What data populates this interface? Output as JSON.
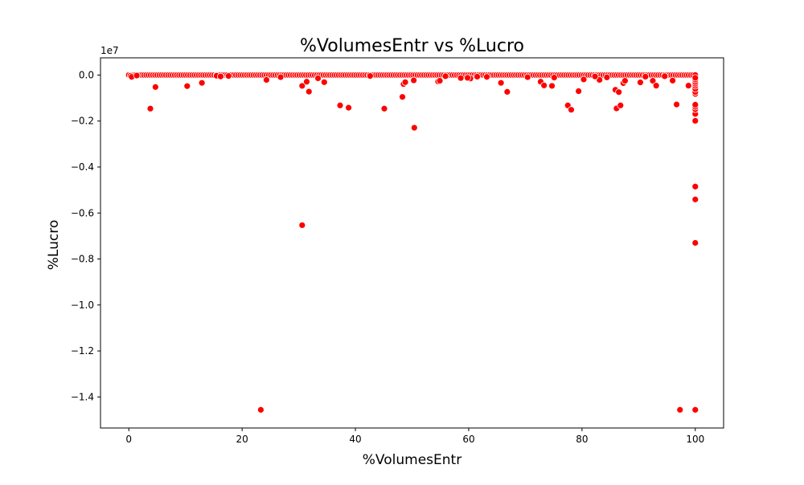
{
  "chart_data": {
    "type": "scatter",
    "title": "%VolumesEntr vs %Lucro",
    "xlabel": "%VolumesEntr",
    "ylabel": "%Lucro",
    "y_offset_label": "1e7",
    "xlim": [
      -5,
      105
    ],
    "ylim": [
      -0.1535,
      0.0075
    ],
    "x_ticks": [
      0,
      20,
      40,
      60,
      80,
      100
    ],
    "x_tick_labels": [
      "0",
      "20",
      "40",
      "60",
      "80",
      "100"
    ],
    "y_ticks": [
      0.0,
      -0.02,
      -0.04,
      -0.06,
      -0.08,
      -0.1,
      -0.12,
      -0.14
    ],
    "y_tick_labels": [
      "0.0",
      "−0.2",
      "−0.4",
      "−0.6",
      "−0.8",
      "−1.0",
      "−1.2",
      "−1.4"
    ],
    "y_units_note": "y values in units of 1e8 relative to tick 'x1e7' scale: tick label = value*10",
    "grid": false,
    "marker_color": "#ff0000",
    "marker_edge_color": "#ffffff",
    "points": [
      [
        3.8,
        -0.0146
      ],
      [
        4.7,
        -0.0052
      ],
      [
        10.3,
        -0.0048
      ],
      [
        12.9,
        -0.0034
      ],
      [
        23.3,
        -0.1456
      ],
      [
        24.3,
        -0.0021
      ],
      [
        30.6,
        -0.0653
      ],
      [
        30.6,
        -0.0047
      ],
      [
        31.4,
        -0.0029
      ],
      [
        31.8,
        -0.0072
      ],
      [
        33.4,
        -0.0014
      ],
      [
        34.5,
        -0.0031
      ],
      [
        37.3,
        -0.0132
      ],
      [
        38.8,
        -0.0142
      ],
      [
        45.1,
        -0.0146
      ],
      [
        48.3,
        -0.0095
      ],
      [
        48.5,
        -0.0039
      ],
      [
        48.8,
        -0.0031
      ],
      [
        50.3,
        -0.0023
      ],
      [
        50.4,
        -0.0229
      ],
      [
        54.6,
        -0.0028
      ],
      [
        54.9,
        -0.0025
      ],
      [
        58.6,
        -0.0013
      ],
      [
        60.3,
        -0.0015
      ],
      [
        65.7,
        -0.0034
      ],
      [
        66.8,
        -0.0073
      ],
      [
        72.7,
        -0.0029
      ],
      [
        73.3,
        -0.0045
      ],
      [
        74.7,
        -0.0047
      ],
      [
        77.5,
        -0.0132
      ],
      [
        78.1,
        -0.0151
      ],
      [
        79.4,
        -0.007
      ],
      [
        80.3,
        -0.0019
      ],
      [
        83.1,
        -0.0021
      ],
      [
        85.9,
        -0.0064
      ],
      [
        86.1,
        -0.0145
      ],
      [
        86.5,
        -0.0074
      ],
      [
        86.8,
        -0.0132
      ],
      [
        87.3,
        -0.0035
      ],
      [
        87.6,
        -0.0025
      ],
      [
        90.3,
        -0.0032
      ],
      [
        92.5,
        -0.0025
      ],
      [
        93.1,
        -0.0046
      ],
      [
        96.0,
        -0.0024
      ],
      [
        96.7,
        -0.0128
      ],
      [
        97.3,
        -0.1456
      ],
      [
        98.8,
        -0.0046
      ],
      [
        100,
        -0.1456
      ],
      [
        100,
        -0.073
      ],
      [
        100,
        -0.0541
      ],
      [
        100,
        -0.0485
      ],
      [
        100,
        -0.0199
      ],
      [
        100,
        -0.0169
      ],
      [
        100,
        -0.0149
      ],
      [
        100,
        -0.0138
      ],
      [
        100,
        -0.0129
      ],
      [
        100,
        -0.0082
      ],
      [
        100,
        -0.0074
      ],
      [
        100,
        -0.006
      ],
      [
        100,
        -0.0047
      ],
      [
        100,
        -0.0038
      ],
      [
        100,
        -0.003
      ],
      [
        100,
        -0.002
      ],
      [
        100,
        -0.0012
      ],
      [
        0.3,
        -0.0003
      ],
      [
        0.5,
        -0.0008
      ],
      [
        1.4,
        -0.0002
      ],
      [
        15.5,
        -0.0003
      ],
      [
        16.2,
        -0.0006
      ],
      [
        17.6,
        -0.0004
      ],
      [
        26.8,
        -0.0009
      ],
      [
        42.6,
        -0.0004
      ],
      [
        55.9,
        -0.0005
      ],
      [
        59.8,
        -0.0012
      ],
      [
        61.5,
        -0.0007
      ],
      [
        63.2,
        -0.0008
      ],
      [
        70.4,
        -0.0009
      ],
      [
        75.1,
        -0.0011
      ],
      [
        82.3,
        -0.0006
      ],
      [
        84.4,
        -0.001
      ],
      [
        91.2,
        -0.0007
      ],
      [
        94.6,
        -0.0005
      ]
    ],
    "baseline_band": {
      "x_start": 0,
      "x_end": 100,
      "count": 260,
      "y": 0.0
    }
  }
}
